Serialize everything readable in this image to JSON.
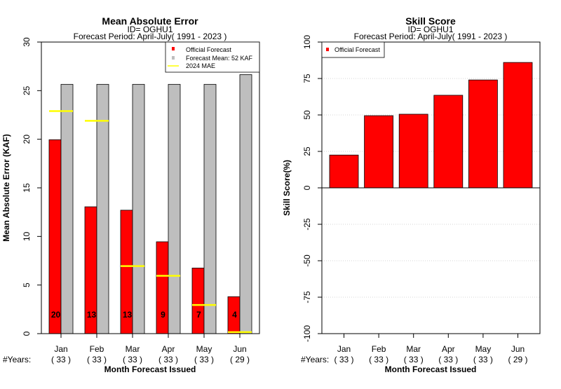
{
  "colors": {
    "official": "#ff0000",
    "mean": "#bebebe",
    "mae_line": "#ffff00",
    "grid": "#c8c8c8"
  },
  "chart_data": [
    {
      "type": "bar",
      "title": "Mean Absolute Error",
      "subtitle1": "ID= OGHU1",
      "subtitle2": "Forecast Period: April-July( 1991 - 2023 )",
      "ylabel": "Mean Absolute Error (KAF)",
      "xlabel": "Month Forecast Issued",
      "years_label": "#Years:",
      "categories": [
        "Jan",
        "Feb",
        "Mar",
        "Apr",
        "May",
        "Jun"
      ],
      "years": [
        "( 33 )",
        "( 33 )",
        "( 33 )",
        "( 33 )",
        "( 33 )",
        "( 29 )"
      ],
      "ylim": [
        0,
        30
      ],
      "yticks": [
        "0",
        "5",
        "10",
        "15",
        "20",
        "25",
        "30"
      ],
      "series": [
        {
          "name": "Official Forecast",
          "values": [
            19.95,
            13.05,
            12.7,
            9.45,
            6.75,
            3.8
          ]
        },
        {
          "name": "Forecast Mean: 52 KAF",
          "values": [
            25.65,
            25.65,
            25.65,
            25.65,
            25.65,
            26.65
          ]
        }
      ],
      "mae_2024": {
        "name": " 2024  MAE",
        "values": [
          22.9,
          21.9,
          6.95,
          5.95,
          2.95,
          0.15
        ]
      },
      "bar_labels": [
        "20",
        "13",
        "13",
        "9",
        "7",
        "4"
      ],
      "legend": [
        "Official Forecast",
        "Forecast Mean: 52 KAF",
        " 2024  MAE"
      ],
      "legend_position": "top-right"
    },
    {
      "type": "bar",
      "title": "Skill Score",
      "subtitle1": "ID= OGHU1",
      "subtitle2": "Forecast Period: April-July( 1991 - 2023 )",
      "ylabel": "Skill Score(%)",
      "xlabel": "Month Forecast Issued",
      "years_label": "#Years:",
      "categories": [
        "Jan",
        "Feb",
        "Mar",
        "Apr",
        "May",
        "Jun"
      ],
      "years": [
        "( 33 )",
        "( 33 )",
        "( 33 )",
        "( 33 )",
        "( 33 )",
        "( 29 )"
      ],
      "ylim": [
        -100,
        100
      ],
      "yticks": [
        "-100",
        "-75",
        "-50",
        "-25",
        "0",
        "25",
        "50",
        "75",
        "100"
      ],
      "series": [
        {
          "name": "Official Forecast",
          "values": [
            22.5,
            49.5,
            50.5,
            63.5,
            74,
            86
          ]
        }
      ],
      "legend": [
        "Official Forecast"
      ],
      "legend_position": "top-left",
      "grid": true
    }
  ]
}
